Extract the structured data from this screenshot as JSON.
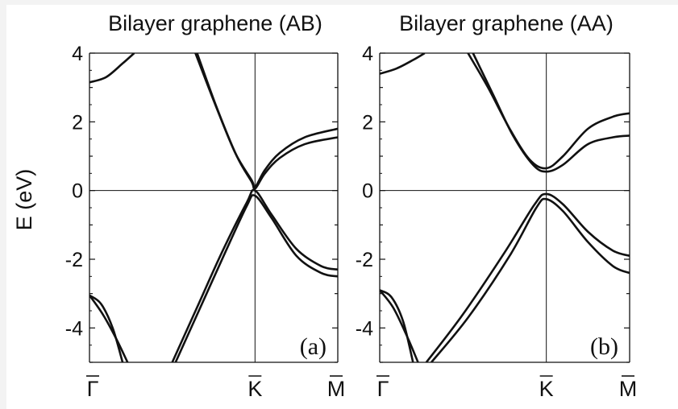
{
  "chart_data": [
    {
      "type": "line",
      "title": "Bilayer graphene (AB)",
      "panel_label": "(a)",
      "ylabel": "E (eV)",
      "ylim": [
        -5,
        4
      ],
      "yticks": [
        "4",
        "2",
        "0",
        "-2",
        "-4"
      ],
      "ytick_values": [
        4,
        2,
        0,
        -2,
        -4
      ],
      "xticks": [
        {
          "label": "Γ",
          "bar": true
        },
        {
          "label": "K",
          "bar": true
        },
        {
          "label": "M",
          "bar": true
        }
      ],
      "x_positions": [
        0,
        1,
        1.5
      ],
      "reference_lines": {
        "horizontal_at_y": 0,
        "vertical_at_x": 1
      },
      "series": [
        {
          "x": [
            0,
            0.1,
            0.2,
            0.27
          ],
          "y": [
            3.15,
            3.3,
            3.7,
            4.0
          ]
        },
        {
          "x": [
            0.64,
            0.76,
            0.88,
            0.98,
            1.0,
            1.06,
            1.15,
            1.3,
            1.5
          ],
          "y": [
            4.0,
            2.5,
            1.1,
            0.3,
            0.1,
            0.6,
            1.1,
            1.55,
            1.8
          ]
        },
        {
          "x": [
            0.65,
            0.77,
            0.89,
            0.98,
            1.0,
            1.06,
            1.15,
            1.3,
            1.5
          ],
          "y": [
            4.0,
            2.4,
            1.0,
            0.25,
            0.05,
            0.5,
            0.95,
            1.35,
            1.55
          ]
        },
        {
          "x": [
            0.5,
            0.65,
            0.8,
            0.95,
            1.0,
            1.1,
            1.25,
            1.4,
            1.5
          ],
          "y": [
            -5.0,
            -3.4,
            -1.8,
            -0.35,
            0.0,
            -0.7,
            -1.7,
            -2.2,
            -2.3
          ]
        },
        {
          "x": [
            0.52,
            0.67,
            0.82,
            0.95,
            1.0,
            1.1,
            1.25,
            1.4,
            1.5
          ],
          "y": [
            -5.0,
            -3.4,
            -1.8,
            -0.45,
            -0.15,
            -0.8,
            -1.9,
            -2.4,
            -2.5
          ]
        },
        {
          "x": [
            0,
            0.07,
            0.14,
            0.2
          ],
          "y": [
            -3.05,
            -3.3,
            -4.0,
            -5.0
          ]
        },
        {
          "x": [
            0,
            0.08,
            0.16,
            0.23
          ],
          "y": [
            -3.05,
            -3.6,
            -4.3,
            -5.0
          ]
        }
      ]
    },
    {
      "type": "line",
      "title": "Bilayer graphene (AA)",
      "panel_label": "(b)",
      "ylim": [
        -5,
        4
      ],
      "yticks": [
        "4",
        "2",
        "0",
        "-2",
        "-4"
      ],
      "ytick_values": [
        4,
        2,
        0,
        -2,
        -4
      ],
      "xticks": [
        {
          "label": "Γ",
          "bar": true
        },
        {
          "label": "K",
          "bar": true
        },
        {
          "label": "M",
          "bar": true
        }
      ],
      "x_positions": [
        0,
        1,
        1.5
      ],
      "reference_lines": {
        "horizontal_at_y": 0,
        "vertical_at_x": 1
      },
      "series": [
        {
          "x": [
            0,
            0.1,
            0.2,
            0.27
          ],
          "y": [
            3.4,
            3.55,
            3.8,
            4.0
          ]
        },
        {
          "x": [
            0.53,
            0.65,
            0.78,
            0.9,
            1.0,
            1.1,
            1.25,
            1.4,
            1.5
          ],
          "y": [
            4.0,
            3.0,
            1.8,
            0.9,
            0.65,
            1.0,
            1.8,
            2.15,
            2.25
          ]
        },
        {
          "x": [
            0.56,
            0.68,
            0.8,
            0.92,
            1.0,
            1.1,
            1.25,
            1.4,
            1.5
          ],
          "y": [
            4.0,
            2.8,
            1.6,
            0.75,
            0.55,
            0.75,
            1.35,
            1.55,
            1.6
          ]
        },
        {
          "x": [
            0.28,
            0.5,
            0.75,
            0.93,
            1.0,
            1.1,
            1.25,
            1.4,
            1.5
          ],
          "y": [
            -5.0,
            -3.6,
            -1.8,
            -0.4,
            -0.1,
            -0.4,
            -1.2,
            -1.75,
            -1.9
          ]
        },
        {
          "x": [
            0.31,
            0.53,
            0.78,
            0.94,
            1.0,
            1.1,
            1.25,
            1.4,
            1.5
          ],
          "y": [
            -5.0,
            -3.7,
            -1.9,
            -0.5,
            -0.25,
            -0.6,
            -1.5,
            -2.2,
            -2.4
          ]
        },
        {
          "x": [
            0,
            0.07,
            0.14,
            0.2
          ],
          "y": [
            -2.9,
            -3.1,
            -3.8,
            -5.0
          ]
        },
        {
          "x": [
            0,
            0.08,
            0.16,
            0.23
          ],
          "y": [
            -2.9,
            -3.4,
            -4.2,
            -5.0
          ]
        }
      ]
    }
  ]
}
